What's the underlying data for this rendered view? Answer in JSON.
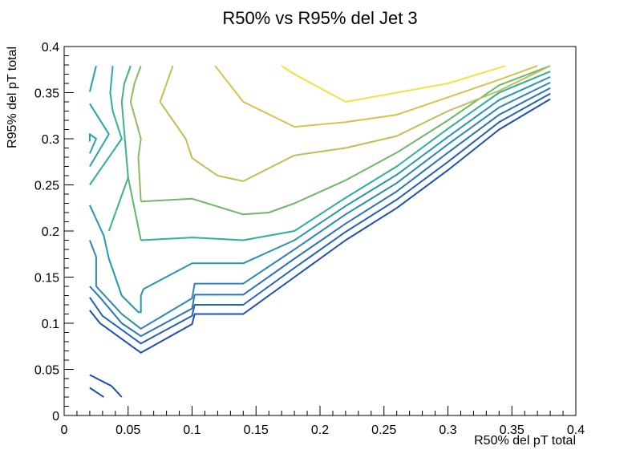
{
  "chart_data": {
    "type": "contour",
    "title": "R50% vs R95% del Jet 3",
    "xlabel": "R50% del pT total",
    "ylabel": "R95% del pT total",
    "xlim": [
      0,
      0.4
    ],
    "ylim": [
      0,
      0.4
    ],
    "x_ticks": [
      {
        "value": 0,
        "label": "0"
      },
      {
        "value": 0.05,
        "label": "0.05"
      },
      {
        "value": 0.1,
        "label": "0.1"
      },
      {
        "value": 0.15,
        "label": "0.15"
      },
      {
        "value": 0.2,
        "label": "0.2"
      },
      {
        "value": 0.25,
        "label": "0.25"
      },
      {
        "value": 0.3,
        "label": "0.3"
      },
      {
        "value": 0.35,
        "label": "0.35"
      },
      {
        "value": 0.4,
        "label": "0.4"
      }
    ],
    "y_ticks": [
      {
        "value": 0,
        "label": "0"
      },
      {
        "value": 0.05,
        "label": "0.05"
      },
      {
        "value": 0.1,
        "label": "0.1"
      },
      {
        "value": 0.15,
        "label": "0.15"
      },
      {
        "value": 0.2,
        "label": "0.2"
      },
      {
        "value": 0.25,
        "label": "0.25"
      },
      {
        "value": 0.3,
        "label": "0.3"
      },
      {
        "value": 0.35,
        "label": "0.35"
      },
      {
        "value": 0.4,
        "label": "0.4"
      }
    ],
    "x_minor_step": 0.01,
    "y_minor_step": 0.01,
    "grid": false,
    "legend": "none",
    "contours": [
      {
        "color": "#1e4fb4",
        "points": [
          [
            0.02,
            0.044
          ],
          [
            0.037,
            0.032
          ]
        ]
      },
      {
        "color": "#1e4fb4",
        "points": [
          [
            0.02,
            0.03
          ],
          [
            0.031,
            0.02
          ]
        ]
      },
      {
        "color": "#1e4fb4",
        "points": [
          [
            0.037,
            0.032
          ],
          [
            0.045,
            0.02
          ]
        ]
      },
      {
        "color": "#1e4fb4",
        "points": [
          [
            0.02,
            0.114
          ],
          [
            0.028,
            0.1
          ],
          [
            0.06,
            0.068
          ],
          [
            0.1,
            0.099
          ],
          [
            0.102,
            0.11
          ],
          [
            0.14,
            0.11
          ],
          [
            0.18,
            0.15
          ],
          [
            0.22,
            0.19
          ],
          [
            0.26,
            0.225
          ],
          [
            0.3,
            0.266
          ],
          [
            0.34,
            0.31
          ],
          [
            0.38,
            0.343
          ]
        ]
      },
      {
        "color": "#2561b6",
        "points": [
          [
            0.02,
            0.128
          ],
          [
            0.03,
            0.108
          ],
          [
            0.06,
            0.078
          ],
          [
            0.1,
            0.108
          ],
          [
            0.102,
            0.12
          ],
          [
            0.14,
            0.12
          ],
          [
            0.18,
            0.16
          ],
          [
            0.22,
            0.199
          ],
          [
            0.26,
            0.234
          ],
          [
            0.3,
            0.275
          ],
          [
            0.34,
            0.318
          ],
          [
            0.38,
            0.349
          ]
        ]
      },
      {
        "color": "#2b73b7",
        "points": [
          [
            0.02,
            0.14
          ],
          [
            0.028,
            0.128
          ],
          [
            0.045,
            0.1
          ],
          [
            0.06,
            0.086
          ],
          [
            0.1,
            0.116
          ],
          [
            0.102,
            0.131
          ],
          [
            0.14,
            0.131
          ],
          [
            0.18,
            0.17
          ],
          [
            0.22,
            0.208
          ],
          [
            0.26,
            0.243
          ],
          [
            0.3,
            0.285
          ],
          [
            0.34,
            0.326
          ],
          [
            0.38,
            0.355
          ]
        ]
      },
      {
        "color": "#2d86b5",
        "points": [
          [
            0.02,
            0.19
          ],
          [
            0.025,
            0.172
          ],
          [
            0.025,
            0.14
          ],
          [
            0.045,
            0.11
          ],
          [
            0.06,
            0.094
          ],
          [
            0.1,
            0.127
          ],
          [
            0.102,
            0.143
          ],
          [
            0.14,
            0.143
          ],
          [
            0.18,
            0.18
          ],
          [
            0.22,
            0.218
          ],
          [
            0.26,
            0.252
          ],
          [
            0.3,
            0.294
          ],
          [
            0.34,
            0.334
          ],
          [
            0.38,
            0.361
          ]
        ]
      },
      {
        "color": "#2696b0",
        "points": [
          [
            0.02,
            0.228
          ],
          [
            0.031,
            0.195
          ],
          [
            0.035,
            0.17
          ],
          [
            0.045,
            0.13
          ],
          [
            0.058,
            0.112
          ],
          [
            0.06,
            0.112
          ],
          [
            0.06,
            0.13
          ],
          [
            0.062,
            0.137
          ],
          [
            0.1,
            0.165
          ],
          [
            0.14,
            0.165
          ],
          [
            0.18,
            0.19
          ],
          [
            0.22,
            0.227
          ],
          [
            0.26,
            0.261
          ],
          [
            0.3,
            0.302
          ],
          [
            0.34,
            0.342
          ],
          [
            0.38,
            0.367
          ]
        ]
      },
      {
        "color": "#25a4a7",
        "points": [
          [
            0.02,
            0.284
          ],
          [
            0.025,
            0.3
          ],
          [
            0.02,
            0.305
          ],
          [
            0.02,
            0.297
          ]
        ]
      },
      {
        "color": "#25a4a7",
        "points": [
          [
            0.02,
            0.351
          ],
          [
            0.025,
            0.379
          ]
        ]
      },
      {
        "color": "#25a4a7",
        "points": [
          [
            0.02,
            0.338
          ],
          [
            0.035,
            0.305
          ],
          [
            0.02,
            0.27
          ]
        ]
      },
      {
        "color": "#2cb09a",
        "points": [
          [
            0.02,
            0.25
          ],
          [
            0.045,
            0.3
          ],
          [
            0.038,
            0.33
          ],
          [
            0.036,
            0.35
          ],
          [
            0.038,
            0.379
          ]
        ]
      },
      {
        "color": "#2cb09a",
        "points": [
          [
            0.06,
            0.19
          ],
          [
            0.1,
            0.193
          ],
          [
            0.14,
            0.19
          ],
          [
            0.18,
            0.2
          ],
          [
            0.22,
            0.236
          ],
          [
            0.26,
            0.27
          ],
          [
            0.3,
            0.311
          ],
          [
            0.34,
            0.35
          ],
          [
            0.38,
            0.373
          ]
        ]
      },
      {
        "color": "#3fb481",
        "points": [
          [
            0.035,
            0.2
          ],
          [
            0.05,
            0.258
          ],
          [
            0.045,
            0.34
          ],
          [
            0.047,
            0.36
          ],
          [
            0.052,
            0.379
          ]
        ]
      },
      {
        "color": "#5cb66f",
        "points": [
          [
            0.06,
            0.19
          ],
          [
            0.05,
            0.258
          ]
        ]
      },
      {
        "color": "#6fb86b",
        "points": [
          [
            0.06,
            0.232
          ],
          [
            0.1,
            0.235
          ],
          [
            0.14,
            0.218
          ],
          [
            0.16,
            0.22
          ],
          [
            0.18,
            0.23
          ],
          [
            0.22,
            0.255
          ],
          [
            0.26,
            0.285
          ],
          [
            0.3,
            0.32
          ],
          [
            0.34,
            0.358
          ],
          [
            0.38,
            0.379
          ]
        ]
      },
      {
        "color": "#8bbb62",
        "points": [
          [
            0.06,
            0.232
          ],
          [
            0.058,
            0.28
          ],
          [
            0.06,
            0.3
          ],
          [
            0.052,
            0.34
          ],
          [
            0.055,
            0.36
          ],
          [
            0.06,
            0.379
          ]
        ]
      },
      {
        "color": "#b3be58",
        "points": [
          [
            0.06,
            0.232
          ],
          [
            0.06,
            0.232
          ]
        ]
      },
      {
        "color": "#c4bd55",
        "points": [
          [
            0.075,
            0.34
          ],
          [
            0.085,
            0.379
          ]
        ]
      },
      {
        "color": "#c4bd55",
        "points": [
          [
            0.075,
            0.34
          ],
          [
            0.095,
            0.3
          ],
          [
            0.1,
            0.279
          ],
          [
            0.12,
            0.26
          ],
          [
            0.14,
            0.254
          ],
          [
            0.18,
            0.282
          ],
          [
            0.22,
            0.29
          ],
          [
            0.26,
            0.303
          ],
          [
            0.3,
            0.33
          ],
          [
            0.34,
            0.352
          ],
          [
            0.38,
            0.379
          ]
        ]
      },
      {
        "color": "#b3be58",
        "points": [
          [
            0.14,
            0.254
          ],
          [
            0.14,
            0.254
          ]
        ]
      },
      {
        "color": "#d9c24a",
        "points": [
          [
            0.118,
            0.379
          ],
          [
            0.14,
            0.34
          ],
          [
            0.18,
            0.313
          ],
          [
            0.22,
            0.318
          ],
          [
            0.26,
            0.326
          ],
          [
            0.3,
            0.345
          ],
          [
            0.34,
            0.364
          ],
          [
            0.37,
            0.379
          ]
        ]
      },
      {
        "color": "#f0e33b",
        "points": [
          [
            0.17,
            0.379
          ],
          [
            0.18,
            0.37
          ],
          [
            0.22,
            0.34
          ],
          [
            0.26,
            0.35
          ],
          [
            0.3,
            0.36
          ],
          [
            0.345,
            0.379
          ]
        ]
      }
    ]
  }
}
